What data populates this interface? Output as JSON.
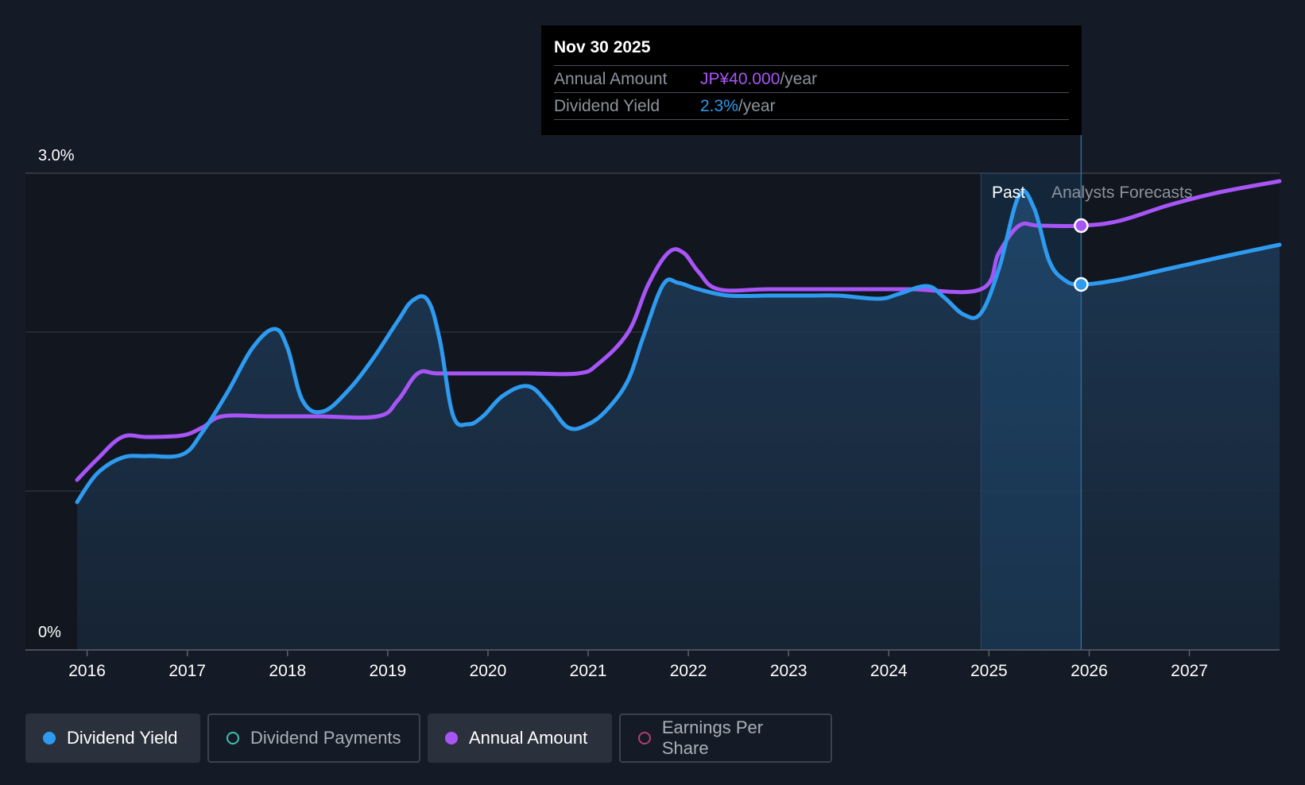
{
  "tooltip": {
    "date": "Nov 30 2025",
    "annual_label": "Annual Amount",
    "annual_value": "JP¥40.000",
    "annual_unit": "/year",
    "yield_label": "Dividend Yield",
    "yield_value": "2.3%",
    "yield_unit": "/year"
  },
  "legend": [
    {
      "label": "Dividend Yield",
      "active": true,
      "color": "#2e9bf0"
    },
    {
      "label": "Dividend Payments",
      "active": false,
      "color": "#3fc1b0"
    },
    {
      "label": "Annual Amount",
      "active": true,
      "color": "#a855f7"
    },
    {
      "label": "Earnings Per Share",
      "active": false,
      "color": "#b13d72"
    }
  ],
  "chart_data": {
    "type": "line",
    "y_tick_labels": [
      "3.0%",
      "0%"
    ],
    "ylim": [
      0,
      3.0
    ],
    "xlim": [
      2015.9,
      2027.9
    ],
    "x_ticks": [
      2016,
      2017,
      2018,
      2019,
      2020,
      2021,
      2022,
      2023,
      2024,
      2025,
      2026,
      2027
    ],
    "grid": true,
    "past_label": "Past",
    "forecast_label": "Analysts Forecasts",
    "forecast_start": 2025.92,
    "highlight_start": 2024.92,
    "series": [
      {
        "name": "Dividend Yield",
        "color": "#2e9bf0",
        "points": [
          [
            2015.9,
            0.93
          ],
          [
            2016.1,
            1.11
          ],
          [
            2016.35,
            1.21
          ],
          [
            2016.6,
            1.22
          ],
          [
            2016.95,
            1.23
          ],
          [
            2017.15,
            1.37
          ],
          [
            2017.4,
            1.62
          ],
          [
            2017.65,
            1.9
          ],
          [
            2017.87,
            2.02
          ],
          [
            2018.0,
            1.9
          ],
          [
            2018.15,
            1.57
          ],
          [
            2018.35,
            1.5
          ],
          [
            2018.6,
            1.63
          ],
          [
            2018.85,
            1.83
          ],
          [
            2019.1,
            2.07
          ],
          [
            2019.25,
            2.2
          ],
          [
            2019.4,
            2.2
          ],
          [
            2019.52,
            1.95
          ],
          [
            2019.65,
            1.48
          ],
          [
            2019.8,
            1.42
          ],
          [
            2019.95,
            1.47
          ],
          [
            2020.15,
            1.6
          ],
          [
            2020.4,
            1.66
          ],
          [
            2020.6,
            1.55
          ],
          [
            2020.8,
            1.4
          ],
          [
            2021.0,
            1.42
          ],
          [
            2021.2,
            1.52
          ],
          [
            2021.4,
            1.7
          ],
          [
            2021.55,
            1.97
          ],
          [
            2021.75,
            2.3
          ],
          [
            2021.9,
            2.31
          ],
          [
            2022.1,
            2.27
          ],
          [
            2022.4,
            2.23
          ],
          [
            2022.8,
            2.23
          ],
          [
            2023.2,
            2.23
          ],
          [
            2023.5,
            2.23
          ],
          [
            2023.9,
            2.21
          ],
          [
            2024.1,
            2.24
          ],
          [
            2024.38,
            2.29
          ],
          [
            2024.55,
            2.22
          ],
          [
            2024.75,
            2.11
          ],
          [
            2024.92,
            2.12
          ],
          [
            2025.1,
            2.4
          ],
          [
            2025.3,
            2.86
          ],
          [
            2025.45,
            2.78
          ],
          [
            2025.6,
            2.45
          ],
          [
            2025.75,
            2.33
          ],
          [
            2025.92,
            2.3
          ],
          [
            2026.3,
            2.33
          ],
          [
            2026.8,
            2.4
          ],
          [
            2027.3,
            2.47
          ],
          [
            2027.9,
            2.55
          ]
        ]
      },
      {
        "name": "Annual Amount",
        "color": "#a855f7",
        "points": [
          [
            2015.9,
            1.07
          ],
          [
            2016.1,
            1.2
          ],
          [
            2016.35,
            1.34
          ],
          [
            2016.6,
            1.34
          ],
          [
            2016.95,
            1.35
          ],
          [
            2017.15,
            1.4
          ],
          [
            2017.35,
            1.47
          ],
          [
            2017.8,
            1.47
          ],
          [
            2018.3,
            1.47
          ],
          [
            2018.9,
            1.47
          ],
          [
            2019.1,
            1.57
          ],
          [
            2019.3,
            1.74
          ],
          [
            2019.5,
            1.74
          ],
          [
            2019.9,
            1.74
          ],
          [
            2020.4,
            1.74
          ],
          [
            2020.9,
            1.74
          ],
          [
            2021.1,
            1.8
          ],
          [
            2021.4,
            2.0
          ],
          [
            2021.6,
            2.3
          ],
          [
            2021.8,
            2.5
          ],
          [
            2021.95,
            2.5
          ],
          [
            2022.1,
            2.38
          ],
          [
            2022.3,
            2.27
          ],
          [
            2022.8,
            2.27
          ],
          [
            2023.5,
            2.27
          ],
          [
            2024.2,
            2.27
          ],
          [
            2024.92,
            2.27
          ],
          [
            2025.1,
            2.5
          ],
          [
            2025.3,
            2.67
          ],
          [
            2025.5,
            2.67
          ],
          [
            2025.92,
            2.67
          ],
          [
            2026.3,
            2.7
          ],
          [
            2026.8,
            2.8
          ],
          [
            2027.3,
            2.88
          ],
          [
            2027.9,
            2.95
          ]
        ]
      }
    ],
    "markers": [
      {
        "series": "Annual Amount",
        "x": 2025.92,
        "y": 2.67
      },
      {
        "series": "Dividend Yield",
        "x": 2025.92,
        "y": 2.3
      }
    ]
  }
}
